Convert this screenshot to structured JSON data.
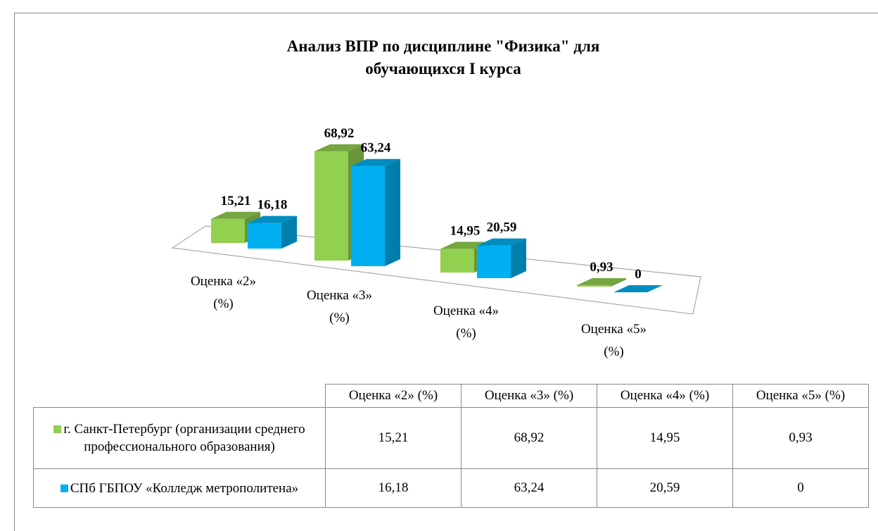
{
  "chart_data": {
    "type": "bar3d",
    "title": "Анализ ВПР по дисциплине \"Физика\" для обучающихся I курса",
    "categories": [
      "Оценка «2» (%)",
      "Оценка «3» (%)",
      "Оценка «4» (%)",
      "Оценка «5» (%)"
    ],
    "series": [
      {
        "name": "г. Санкт-Петербург (организации среднего профессионального образования)",
        "color": "#92d050",
        "values": [
          15.21,
          68.92,
          14.95,
          0.93
        ],
        "value_labels": [
          "15,21",
          "68,92",
          "14,95",
          "0,93"
        ]
      },
      {
        "name": "СПб ГБПОУ «Колледж метрополитена»",
        "color": "#00b0f0",
        "values": [
          16.18,
          63.24,
          20.59,
          0
        ],
        "value_labels": [
          "16,18",
          "63,24",
          "20,59",
          "0"
        ]
      }
    ],
    "data_table": true
  }
}
